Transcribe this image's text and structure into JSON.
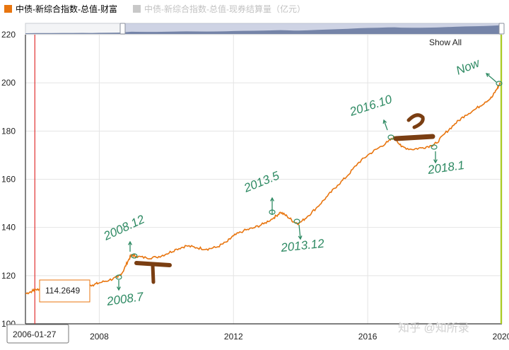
{
  "legend": {
    "items": [
      {
        "label": "中债-新综合指数-总值-财富",
        "color": "#e8750f",
        "active": true
      },
      {
        "label": "中债-新综合指数-总值-现券结算量（亿元）",
        "color": "#c8c8c8",
        "active": false
      }
    ]
  },
  "show_all_label": "Show All",
  "tooltip": {
    "value": "114.2649",
    "date": "2006-01-27"
  },
  "watermark": "知乎 @知所录",
  "colors": {
    "series": "#e8750f",
    "crosshair": "#e03030",
    "annotation": "#2e8a63",
    "highlighter": "#7a3e12",
    "end_marker": "#aacc22"
  },
  "annotations": [
    {
      "text": "2008.12",
      "x": 2008.96,
      "y": 128.5
    },
    {
      "text": "2008.7",
      "x": 2008.55,
      "y": 119.5
    },
    {
      "text": "2013.5",
      "x": 2013.4,
      "y": 146.5
    },
    {
      "text": "2013.12",
      "x": 2013.95,
      "y": 142.5
    },
    {
      "text": "2016.10",
      "x": 2016.8,
      "y": 177.5
    },
    {
      "text": "2018.1",
      "x": 2018.0,
      "y": 175
    },
    {
      "text": "Now",
      "x": 2019.92,
      "y": 199.5
    }
  ],
  "handwritten_marks": [
    "1",
    "2"
  ],
  "chart_data": {
    "type": "line",
    "x_axis_type": "time",
    "xlim": [
      2005.8,
      2020.0
    ],
    "ylim": [
      100,
      220
    ],
    "x_ticks": [
      "2008",
      "2012",
      "2016",
      "2020"
    ],
    "y_ticks": [
      100,
      120,
      140,
      160,
      180,
      200,
      220
    ],
    "grid": true,
    "legend_position": "top-left",
    "series": [
      {
        "name": "中债-新综合指数-总值-财富",
        "color": "#e8750f",
        "points": [
          [
            2005.8,
            112.5
          ],
          [
            2006.0,
            113.6
          ],
          [
            2006.08,
            114.26
          ],
          [
            2006.3,
            114.4
          ],
          [
            2006.6,
            115.2
          ],
          [
            2006.9,
            115.7
          ],
          [
            2007.2,
            116.0
          ],
          [
            2007.5,
            116.4
          ],
          [
            2007.8,
            116.1
          ],
          [
            2008.0,
            117.0
          ],
          [
            2008.3,
            118.2
          ],
          [
            2008.55,
            119.3
          ],
          [
            2008.7,
            121.5
          ],
          [
            2008.85,
            126.0
          ],
          [
            2008.96,
            128.6
          ],
          [
            2009.1,
            128.0
          ],
          [
            2009.4,
            127.4
          ],
          [
            2009.7,
            127.6
          ],
          [
            2010.0,
            129.0
          ],
          [
            2010.3,
            131.0
          ],
          [
            2010.6,
            132.4
          ],
          [
            2010.9,
            131.6
          ],
          [
            2011.2,
            131.0
          ],
          [
            2011.5,
            131.8
          ],
          [
            2011.8,
            134.0
          ],
          [
            2012.0,
            136.5
          ],
          [
            2012.3,
            138.6
          ],
          [
            2012.6,
            139.8
          ],
          [
            2012.9,
            141.5
          ],
          [
            2013.2,
            144.0
          ],
          [
            2013.4,
            146.3
          ],
          [
            2013.6,
            144.6
          ],
          [
            2013.8,
            142.3
          ],
          [
            2013.95,
            141.6
          ],
          [
            2014.2,
            144.5
          ],
          [
            2014.5,
            148.5
          ],
          [
            2014.8,
            153.0
          ],
          [
            2015.1,
            157.5
          ],
          [
            2015.4,
            161.5
          ],
          [
            2015.7,
            166.5
          ],
          [
            2016.0,
            170.0
          ],
          [
            2016.3,
            172.8
          ],
          [
            2016.6,
            175.5
          ],
          [
            2016.8,
            177.6
          ],
          [
            2017.0,
            173.5
          ],
          [
            2017.3,
            172.4
          ],
          [
            2017.6,
            173.0
          ],
          [
            2017.9,
            174.0
          ],
          [
            2018.05,
            175.0
          ],
          [
            2018.3,
            179.0
          ],
          [
            2018.6,
            183.0
          ],
          [
            2018.9,
            186.5
          ],
          [
            2019.2,
            189.0
          ],
          [
            2019.5,
            192.0
          ],
          [
            2019.7,
            194.0
          ],
          [
            2019.85,
            197.5
          ],
          [
            2019.95,
            199.8
          ]
        ]
      }
    ]
  }
}
